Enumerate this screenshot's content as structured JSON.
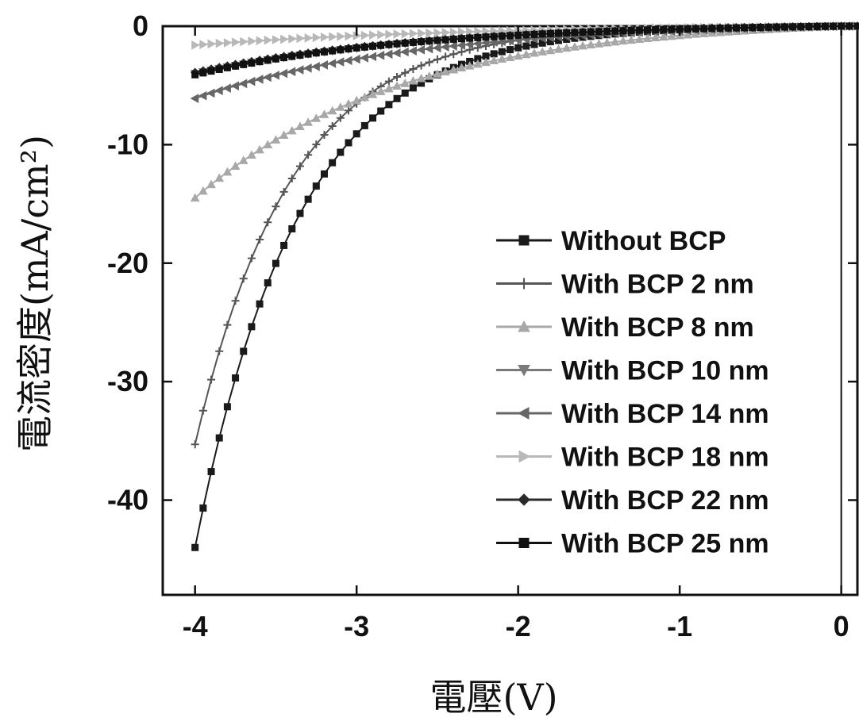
{
  "chart_data": {
    "type": "line",
    "xlabel": "電壓(V)",
    "ylabel": "電流密度(mA/cm²)",
    "xlim": [
      -4.2,
      0.1
    ],
    "ylim": [
      -48,
      0
    ],
    "x_ticks": [
      -4,
      -3,
      -2,
      -1,
      0
    ],
    "y_ticks": [
      0,
      -10,
      -20,
      -30,
      -40
    ],
    "x_tick_labels": [
      "-4",
      "-3",
      "-2",
      "-1",
      "0"
    ],
    "y_tick_labels": [
      "0",
      "-10",
      "-20",
      "-30",
      "-40"
    ],
    "grid": false,
    "legend_position": "bottom-right",
    "series": [
      {
        "name": "Without BCP",
        "color": "#1a1a1a",
        "marker": "square",
        "j0": -44.0,
        "k": 1.57
      },
      {
        "name": "With BCP 2 nm",
        "color": "#555555",
        "marker": "plus",
        "j0": -35.3,
        "k": 1.68
      },
      {
        "name": "With BCP 8 nm",
        "color": "#a8a8a8",
        "marker": "triangle-up",
        "j0": -14.5,
        "k": 0.78
      },
      {
        "name": "With BCP 10 nm",
        "color": "#7a7a7a",
        "marker": "triangle-down",
        "j0": -4.0,
        "k": 0.7
      },
      {
        "name": "With BCP 14 nm",
        "color": "#666666",
        "marker": "triangle-left",
        "j0": -6.1,
        "k": 0.72
      },
      {
        "name": "With BCP 18 nm",
        "color": "#b8b8b8",
        "marker": "triangle-right",
        "j0": -1.6,
        "k": 0.6
      },
      {
        "name": "With BCP 22 nm",
        "color": "#2a2a2a",
        "marker": "diamond",
        "j0": -3.9,
        "k": 0.72
      },
      {
        "name": "With BCP 25 nm",
        "color": "#111111",
        "marker": "square",
        "j0": -4.1,
        "k": 0.74
      }
    ]
  }
}
